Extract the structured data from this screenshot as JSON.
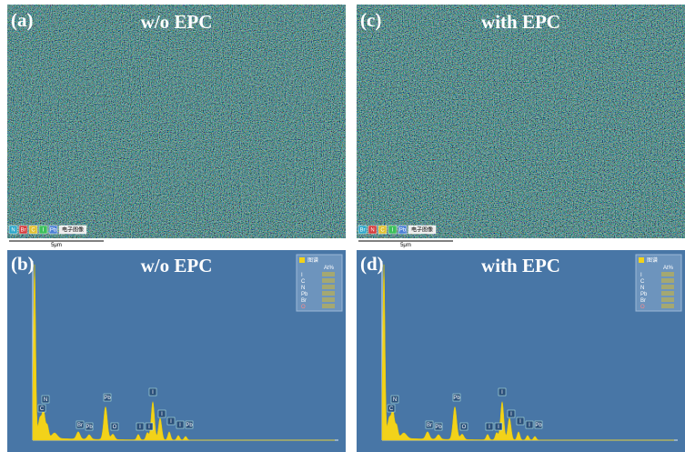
{
  "panels": [
    {
      "label": "(a)",
      "title": "w/o EPC",
      "legend": [
        "N",
        "Br",
        "C",
        "I",
        "Pb",
        "电子图像"
      ],
      "scale_bar": "5μm"
    },
    {
      "label": "(b)",
      "title": "w/o EPC",
      "peaks": [
        "C",
        "N",
        "Br",
        "Pb",
        "Pb",
        "O",
        "I",
        "I",
        "I",
        "I",
        "I",
        "I",
        "Pb"
      ],
      "legend_title": "图谱",
      "legend_unit": "At%",
      "legend_elements": [
        "I",
        "C",
        "N",
        "Pb",
        "Br",
        "O"
      ]
    },
    {
      "label": "(c)",
      "title": "with EPC",
      "legend": [
        "Br",
        "N",
        "C",
        "I",
        "Pb",
        "电子图像"
      ],
      "scale_bar": "5μm"
    },
    {
      "label": "(d)",
      "title": "with EPC",
      "peaks": [
        "C",
        "N",
        "Br",
        "Pb",
        "Pb",
        "O",
        "I",
        "I",
        "I",
        "I",
        "I",
        "I",
        "Pb"
      ],
      "legend_title": "图谱",
      "legend_unit": "At%",
      "legend_elements": [
        "I",
        "C",
        "N",
        "Pb",
        "Br",
        "O"
      ]
    }
  ]
}
